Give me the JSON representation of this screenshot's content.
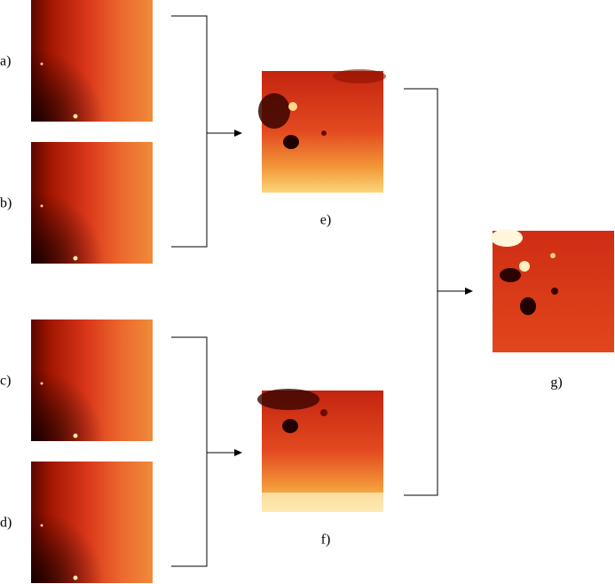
{
  "panels": [
    {
      "label": "a)"
    },
    {
      "label": "b)"
    },
    {
      "label": "c)"
    },
    {
      "label": "d)"
    },
    {
      "label": "e)"
    },
    {
      "label": "f)"
    },
    {
      "label": "g)"
    }
  ]
}
